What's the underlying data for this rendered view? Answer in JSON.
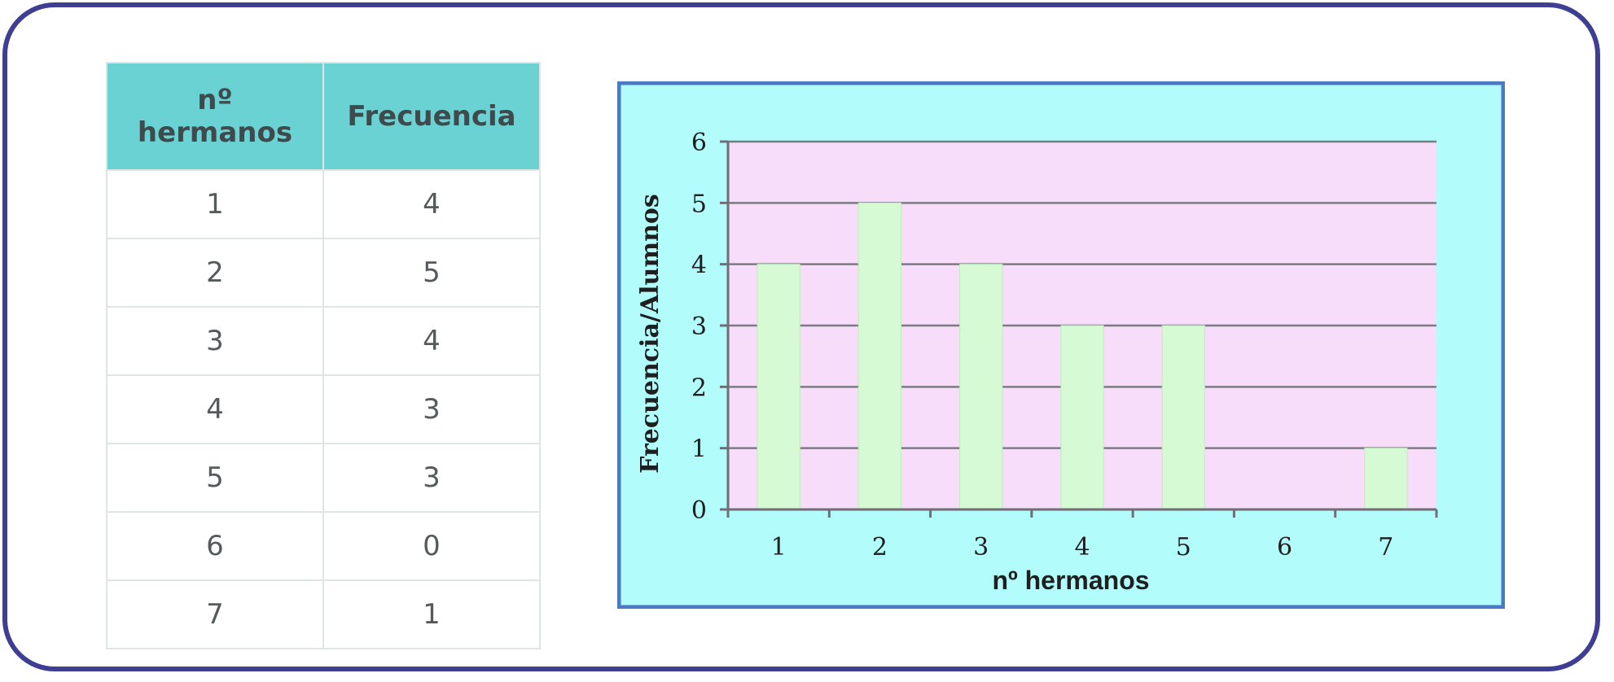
{
  "table": {
    "headers": [
      "nº\nhermanos",
      "Frecuencia"
    ],
    "header_col1_line1": "nº",
    "header_col1_line2": "hermanos",
    "header_col2": "Frecuencia",
    "rows": [
      [
        "1",
        "4"
      ],
      [
        "2",
        "5"
      ],
      [
        "3",
        "4"
      ],
      [
        "4",
        "3"
      ],
      [
        "5",
        "3"
      ],
      [
        "6",
        "0"
      ],
      [
        "7",
        "1"
      ]
    ]
  },
  "chart_data": {
    "type": "bar",
    "categories": [
      "1",
      "2",
      "3",
      "4",
      "5",
      "6",
      "7"
    ],
    "values": [
      4,
      5,
      4,
      3,
      3,
      0,
      1
    ],
    "title": "",
    "xlabel": "nº hermanos",
    "ylabel": "Frecuencia/Alumnos",
    "ylim": [
      0,
      6
    ],
    "yticks": [
      "0",
      "1",
      "2",
      "3",
      "4",
      "5",
      "6"
    ],
    "grid": true,
    "legend": "none",
    "colors": {
      "outer_bg": "#b2fdfc",
      "outer_border": "#4b79c4",
      "plot_bg": "#f7ddf9",
      "bar": "#d6fad4",
      "bar_edge": "#c2ecbf",
      "grid": "#7b7b84"
    }
  },
  "colors": {
    "frame_border": "#3e3f92",
    "table_header_bg": "#6bd2d4",
    "table_border": "#dfe4e4"
  }
}
